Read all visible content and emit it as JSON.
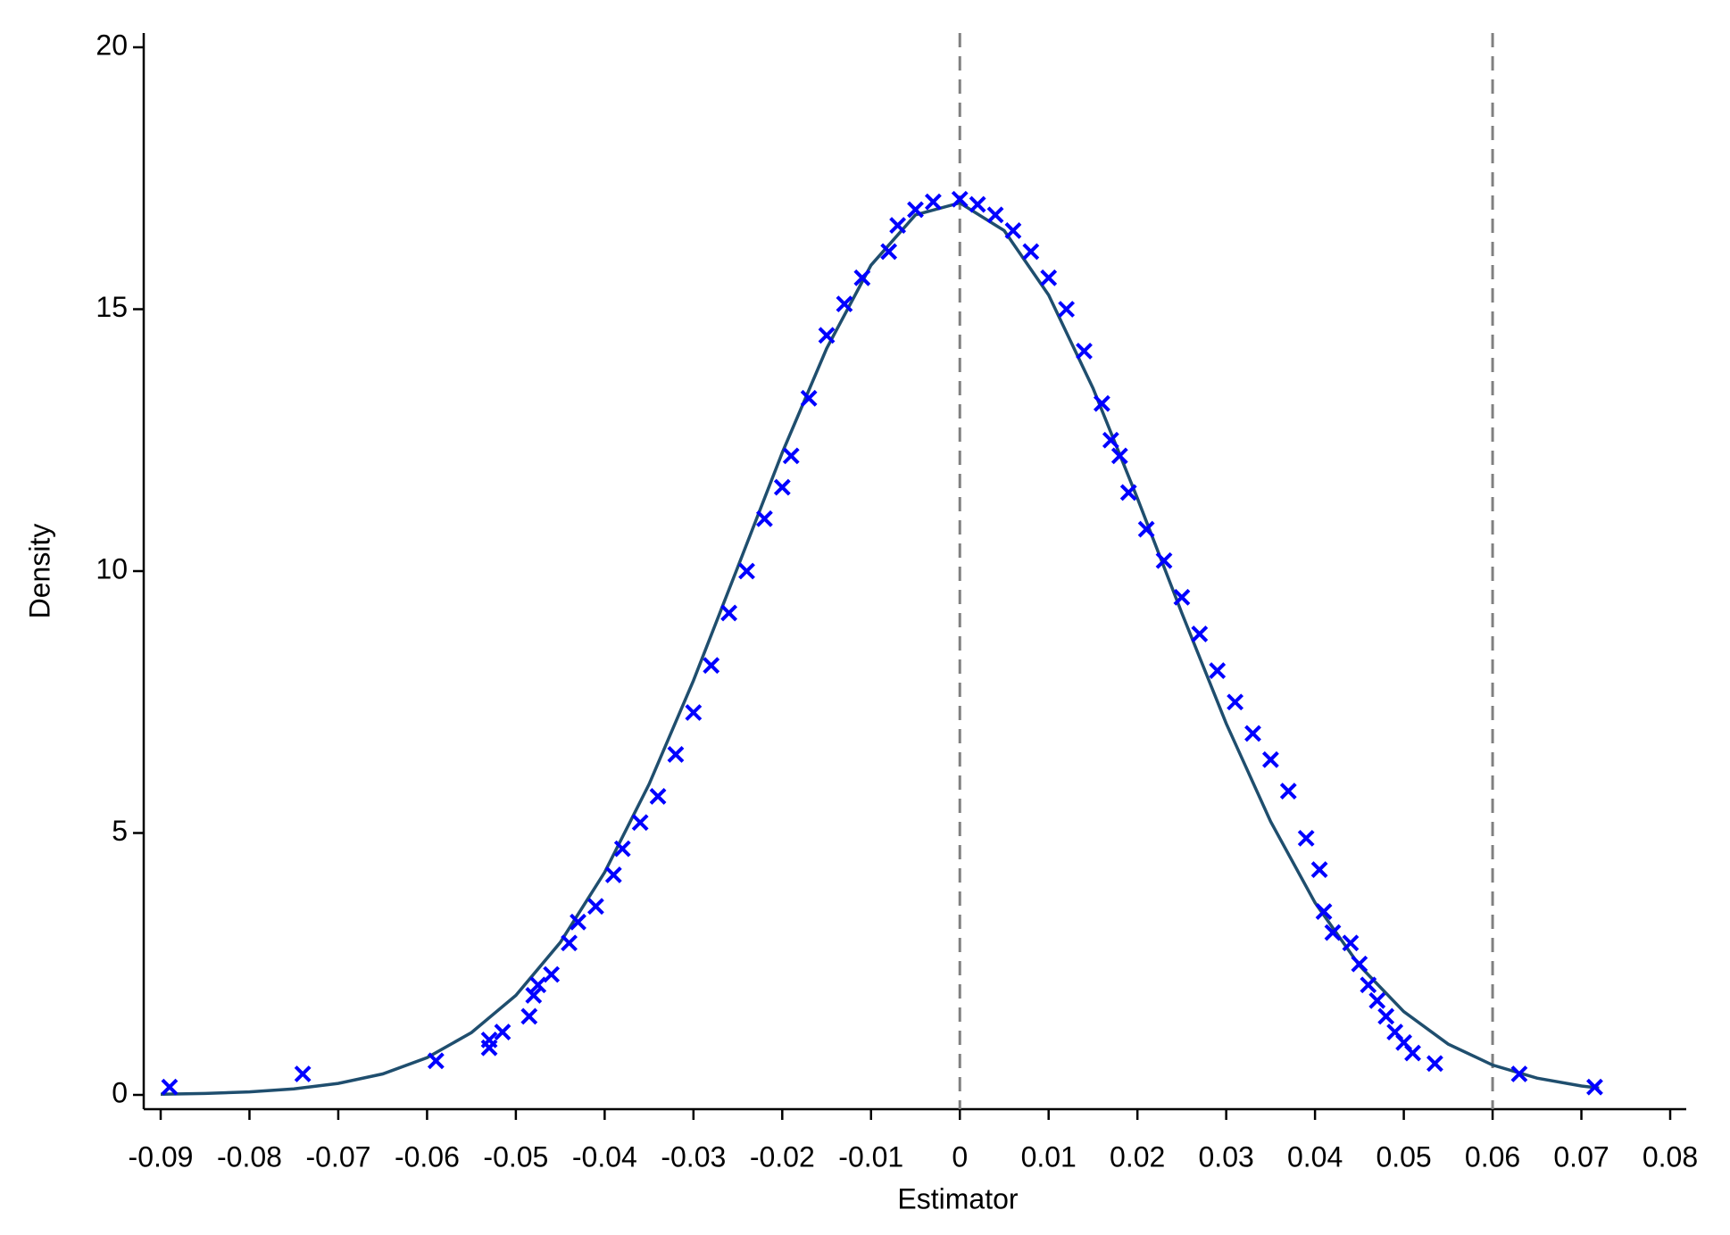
{
  "chart_data": {
    "type": "scatter",
    "x_label": "Estimator",
    "y_label": "Density",
    "xlim": [
      -0.09,
      0.08
    ],
    "ylim": [
      0,
      20
    ],
    "xticks": [
      -0.09,
      -0.08,
      -0.07,
      -0.06,
      -0.05,
      -0.04,
      -0.03,
      -0.02,
      -0.01,
      0,
      0.01,
      0.02,
      0.03,
      0.04,
      0.05,
      0.06,
      0.07,
      0.08
    ],
    "yticks": [
      0,
      5,
      10,
      15,
      20
    ],
    "reference_lines_x": [
      0,
      0.06
    ],
    "reference_line_color": "#808080",
    "points": {
      "color": "#0000ff",
      "x": [
        -0.089,
        -0.074,
        -0.059,
        -0.053,
        -0.053,
        -0.0515,
        -0.0485,
        -0.048,
        -0.0475,
        -0.046,
        -0.044,
        -0.043,
        -0.041,
        -0.039,
        -0.038,
        -0.036,
        -0.034,
        -0.032,
        -0.03,
        -0.028,
        -0.026,
        -0.024,
        -0.022,
        -0.02,
        -0.019,
        -0.017,
        -0.015,
        -0.013,
        -0.011,
        -0.008,
        -0.007,
        -0.005,
        -0.003,
        0,
        0.002,
        0.004,
        0.006,
        0.008,
        0.01,
        0.012,
        0.014,
        0.016,
        0.017,
        0.018,
        0.019,
        0.021,
        0.023,
        0.025,
        0.027,
        0.029,
        0.031,
        0.033,
        0.035,
        0.037,
        0.039,
        0.0405,
        0.041,
        0.042,
        0.044,
        0.045,
        0.046,
        0.047,
        0.048,
        0.049,
        0.05,
        0.051,
        0.0535,
        0.063,
        0.0715
      ],
      "y": [
        0.15,
        0.4,
        0.65,
        0.9,
        1.05,
        1.2,
        1.5,
        1.9,
        2.1,
        2.3,
        2.9,
        3.3,
        3.6,
        4.2,
        4.7,
        5.2,
        5.7,
        6.5,
        7.3,
        8.2,
        9.2,
        10.0,
        11.0,
        11.6,
        12.2,
        13.3,
        14.5,
        15.1,
        15.6,
        16.1,
        16.6,
        16.9,
        17.05,
        17.1,
        17.0,
        16.8,
        16.5,
        16.1,
        15.6,
        15.0,
        14.2,
        13.2,
        12.5,
        12.2,
        11.5,
        10.8,
        10.2,
        9.5,
        8.8,
        8.1,
        7.5,
        6.9,
        6.4,
        5.8,
        4.9,
        4.3,
        3.5,
        3.1,
        2.9,
        2.5,
        2.1,
        1.8,
        1.5,
        1.2,
        1.0,
        0.8,
        0.6,
        0.4,
        0.15
      ]
    },
    "curve": {
      "color": "#1f4e6e",
      "x": [
        -0.09,
        -0.085,
        -0.08,
        -0.075,
        -0.07,
        -0.065,
        -0.06,
        -0.055,
        -0.05,
        -0.045,
        -0.04,
        -0.035,
        -0.03,
        -0.025,
        -0.02,
        -0.015,
        -0.01,
        -0.005,
        0,
        0.005,
        0.01,
        0.015,
        0.02,
        0.025,
        0.03,
        0.035,
        0.04,
        0.045,
        0.05,
        0.055,
        0.06,
        0.065,
        0.07,
        0.072
      ],
      "y": [
        0.012,
        0.027,
        0.057,
        0.115,
        0.22,
        0.4,
        0.71,
        1.19,
        1.9,
        2.91,
        4.25,
        5.93,
        7.91,
        10.08,
        12.26,
        14.25,
        15.84,
        16.8,
        17.03,
        16.5,
        15.27,
        13.49,
        11.39,
        9.2,
        7.09,
        5.22,
        3.67,
        2.47,
        1.59,
        0.97,
        0.57,
        0.32,
        0.17,
        0.13
      ]
    }
  }
}
